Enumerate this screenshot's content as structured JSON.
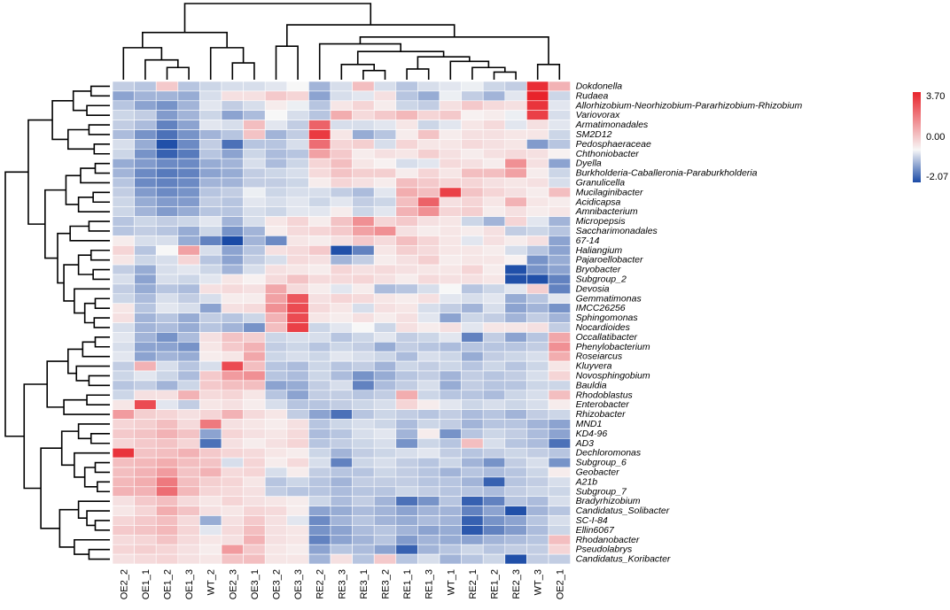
{
  "chart_data": {
    "type": "heatmap",
    "title": "",
    "columns": [
      "OE2_2",
      "OE1_1",
      "OE1_2",
      "OE1_3",
      "WT_2",
      "OE2_3",
      "OE3_1",
      "OE3_2",
      "OE3_3",
      "RE2_2",
      "RE3_3",
      "RE3_1",
      "RE3_2",
      "RE1_1",
      "RE1_3",
      "WT_1",
      "RE2_1",
      "RE1_2",
      "RE2_3",
      "WT_3",
      "OE2_1"
    ],
    "rows": [
      "Dokdonella",
      "Rudaea",
      "Allorhizobium-Neorhizobium-Pararhizobium-Rhizobium",
      "Variovorax",
      "Armatimonadales",
      "SM2D12",
      "Pedosphaeraceae",
      "Chthoniobacter",
      "Dyella",
      "Burkholderia-Caballeronia-Paraburkholderia",
      "Granulicella",
      "Mucilaginibacter",
      "Acidicapsa",
      "Amnibacterium",
      "Micropepsis",
      "Saccharimonadales",
      "67-14",
      "Haliangium",
      "Pajaroellobacter",
      "Bryobacter",
      "Subgroup_2",
      "Devosia",
      "Gemmatimonas",
      "IMCC26256",
      "Sphingomonas",
      "Nocardioides",
      "Occallatibacter",
      "Phenylobacterium",
      "Roseiarcus",
      "Kluyvera",
      "Novosphingobium",
      "Bauldia",
      "Rhodoblastus",
      "Enterobacter",
      "Rhizobacter",
      "MND1",
      "KD4-96",
      "AD3",
      "Dechloromonas",
      "Subgroup_6",
      "Geobacter",
      "A21b",
      "Subgroup_7",
      "Bradyrhizobium",
      "Candidatus_Solibacter",
      "SC-I-84",
      "Ellin6067",
      "Rhodanobacter",
      "Pseudolabrys",
      "Candidatus_Koribacter"
    ],
    "values": [
      [
        -0.5,
        -0.6,
        0.8,
        -0.6,
        -0.4,
        -0.3,
        -0.3,
        -0.2,
        0.0,
        -0.8,
        -0.3,
        1.0,
        -0.3,
        -0.6,
        -0.3,
        -0.2,
        -0.1,
        -0.4,
        -0.5,
        3.5,
        1.2
      ],
      [
        -1.0,
        -0.8,
        -0.8,
        -0.9,
        -0.3,
        0.4,
        0.4,
        0.8,
        0.6,
        -1.0,
        -0.3,
        -0.2,
        0.4,
        -0.6,
        -0.9,
        -0.1,
        -0.5,
        -0.8,
        -0.2,
        3.7,
        -0.4
      ],
      [
        -0.6,
        -1.0,
        -1.2,
        -0.8,
        -0.2,
        -0.5,
        -0.3,
        0.2,
        -0.1,
        -0.6,
        0.3,
        0.6,
        0.2,
        -0.4,
        -0.5,
        0.4,
        0.8,
        0.5,
        0.4,
        3.4,
        -0.2
      ],
      [
        -0.4,
        -0.5,
        -1.1,
        -0.8,
        -0.4,
        -1.0,
        -0.7,
        0.0,
        -0.3,
        -0.6,
        1.3,
        0.5,
        0.8,
        1.1,
        0.6,
        0.8,
        0.1,
        0.2,
        -0.1,
        3.2,
        -0.3
      ],
      [
        -0.5,
        -0.7,
        -1.4,
        -1.0,
        -0.2,
        -0.3,
        1.0,
        -0.2,
        -0.5,
        2.6,
        -0.3,
        -0.3,
        -0.2,
        0.3,
        -0.4,
        -0.2,
        0.3,
        0.5,
        -0.2,
        0.4,
        -0.2
      ],
      [
        -0.7,
        -1.2,
        -1.6,
        -1.2,
        -0.8,
        -0.6,
        0.9,
        -0.8,
        -0.5,
        3.3,
        0.3,
        -0.9,
        -0.6,
        0.2,
        0.9,
        0.2,
        0.4,
        0.4,
        0.3,
        0.3,
        -0.4
      ],
      [
        -0.3,
        -0.9,
        -2.0,
        -1.3,
        -0.5,
        -1.6,
        -0.6,
        -0.6,
        -0.3,
        2.4,
        0.6,
        0.7,
        -0.3,
        0.6,
        0.3,
        0.3,
        0.5,
        0.4,
        0.3,
        -1.1,
        -0.6
      ],
      [
        -0.4,
        -1.2,
        -1.8,
        -1.5,
        -0.6,
        -1.0,
        -0.4,
        -0.7,
        -0.6,
        1.5,
        0.8,
        0.2,
        0.4,
        0.3,
        0.7,
        0.4,
        0.2,
        0.4,
        0.5,
        0.4,
        0.1
      ],
      [
        -0.9,
        -1.1,
        -1.3,
        -1.3,
        -0.9,
        -0.8,
        -0.3,
        -0.7,
        -0.4,
        0.6,
        1.0,
        0.3,
        0.1,
        -0.3,
        -0.2,
        0.5,
        0.4,
        0.2,
        1.8,
        0.4,
        -1.0
      ],
      [
        -0.8,
        -1.3,
        -1.5,
        -1.4,
        -1.0,
        -0.9,
        -0.5,
        -0.4,
        -0.3,
        0.5,
        0.9,
        0.7,
        0.7,
        0.2,
        0.6,
        0.3,
        1.0,
        1.0,
        1.5,
        0.2,
        -0.4
      ],
      [
        -0.6,
        -1.3,
        -1.4,
        -1.3,
        -0.8,
        -0.8,
        -0.5,
        -0.5,
        -0.4,
        0.2,
        0.6,
        0.4,
        0.2,
        1.0,
        0.8,
        0.6,
        0.6,
        0.4,
        0.3,
        0.4,
        -0.3
      ],
      [
        -0.5,
        -1.1,
        -1.3,
        -1.2,
        -0.6,
        -0.5,
        -0.1,
        -0.4,
        -0.3,
        -0.3,
        -0.5,
        -0.7,
        -0.2,
        1.3,
        1.0,
        3.2,
        0.9,
        0.6,
        0.4,
        0.2,
        1.0
      ],
      [
        -0.4,
        -0.9,
        -1.1,
        -1.1,
        -0.5,
        -0.6,
        -0.2,
        -0.3,
        -0.2,
        -0.4,
        -0.2,
        -0.5,
        -0.4,
        1.0,
        2.6,
        0.4,
        0.6,
        0.3,
        1.2,
        0.3,
        0.2
      ],
      [
        -0.4,
        -0.8,
        -1.1,
        -0.9,
        -0.6,
        -0.6,
        -0.3,
        -0.4,
        -0.2,
        -0.2,
        0.2,
        -0.4,
        -0.2,
        1.2,
        1.8,
        0.6,
        0.7,
        0.2,
        0.4,
        0.2,
        0.3
      ],
      [
        -0.6,
        -0.4,
        -0.5,
        -0.4,
        -0.2,
        -0.8,
        -0.3,
        0.3,
        0.6,
        0.2,
        0.9,
        1.8,
        0.6,
        0.8,
        0.4,
        0.3,
        -0.4,
        -0.8,
        0.6,
        -0.2,
        -0.8
      ],
      [
        -0.6,
        -0.5,
        -0.6,
        -0.9,
        -0.4,
        -1.2,
        -0.8,
        0.2,
        0.5,
        0.6,
        0.8,
        1.5,
        1.8,
        0.4,
        0.2,
        0.3,
        0.2,
        0.4,
        -0.5,
        -0.4,
        -0.6
      ],
      [
        0.2,
        -0.3,
        -0.3,
        -0.9,
        -1.4,
        -2.1,
        -0.8,
        -1.3,
        0.3,
        0.2,
        0.4,
        0.8,
        0.5,
        1.0,
        0.6,
        0.3,
        -0.2,
        0.4,
        0.2,
        0.4,
        -1.0
      ],
      [
        0.6,
        -0.6,
        0.0,
        1.5,
        -0.3,
        -1.0,
        -0.6,
        0.4,
        0.5,
        0.8,
        -2.0,
        -1.4,
        0.3,
        0.7,
        0.5,
        0.3,
        0.3,
        0.2,
        -0.3,
        -0.6,
        -1.0
      ],
      [
        0.3,
        -0.4,
        -0.3,
        0.6,
        -0.6,
        -1.0,
        -0.5,
        -0.3,
        0.5,
        0.4,
        -0.8,
        -0.5,
        0.2,
        0.4,
        0.7,
        0.2,
        0.3,
        0.3,
        0.1,
        -1.2,
        -0.9
      ],
      [
        -0.5,
        -0.9,
        -0.3,
        -0.2,
        -0.4,
        -0.8,
        -0.3,
        0.4,
        0.3,
        0.2,
        0.6,
        0.4,
        0.5,
        0.4,
        0.3,
        0.3,
        0.6,
        0.2,
        -2.0,
        -1.2,
        -1.0
      ],
      [
        -0.3,
        -1.0,
        -0.3,
        -0.4,
        -0.2,
        0.3,
        0.1,
        0.5,
        0.9,
        0.5,
        0.5,
        0.6,
        0.4,
        0.2,
        0.5,
        0.4,
        0.4,
        0.3,
        -2.0,
        -2.0,
        -1.4
      ],
      [
        -0.5,
        -0.9,
        -0.6,
        -0.7,
        0.4,
        0.5,
        0.4,
        1.4,
        0.5,
        0.2,
        -0.2,
        0.2,
        -0.7,
        -0.6,
        -0.3,
        0.0,
        -0.6,
        -0.4,
        -0.2,
        0.7,
        -1.4
      ],
      [
        -0.4,
        -0.7,
        -0.3,
        -0.5,
        -0.3,
        0.2,
        0.2,
        1.5,
        2.8,
        0.4,
        0.6,
        0.5,
        0.3,
        0.2,
        0.4,
        -0.2,
        -0.3,
        -0.2,
        -0.9,
        -0.6,
        -0.2
      ],
      [
        0.3,
        -0.6,
        -0.2,
        -0.3,
        -1.0,
        0.4,
        0.5,
        1.8,
        3.0,
        0.5,
        0.3,
        -0.3,
        0.4,
        0.3,
        -0.3,
        -0.5,
        -0.8,
        -0.3,
        -1.0,
        -0.8,
        -1.2
      ],
      [
        0.4,
        -0.8,
        -0.6,
        -0.9,
        -0.5,
        -0.6,
        -0.4,
        1.2,
        3.0,
        0.3,
        0.2,
        0.4,
        0.2,
        0.4,
        -0.2,
        -1.0,
        -0.4,
        -0.5,
        -0.8,
        -0.5,
        -0.8
      ],
      [
        -0.3,
        -0.8,
        -0.7,
        -0.9,
        -0.6,
        -0.8,
        -1.2,
        1.0,
        3.2,
        -0.4,
        -0.2,
        0.0,
        -0.4,
        0.4,
        0.2,
        0.4,
        -0.2,
        0.3,
        0.3,
        0.4,
        -0.5
      ],
      [
        -0.2,
        -0.8,
        -1.2,
        -0.7,
        0.4,
        0.9,
        0.7,
        -0.4,
        -0.3,
        -0.3,
        -0.6,
        -0.4,
        -0.2,
        -0.5,
        -0.4,
        -0.2,
        -1.4,
        -0.5,
        -1.0,
        -0.6,
        1.4
      ],
      [
        -0.3,
        -1.0,
        -1.0,
        -1.2,
        0.3,
        0.8,
        1.2,
        -0.5,
        -0.4,
        -0.6,
        -0.4,
        -0.5,
        -0.9,
        -0.5,
        -0.6,
        -0.7,
        -0.6,
        -0.6,
        -0.6,
        -0.5,
        1.8
      ],
      [
        -0.2,
        -1.0,
        -0.8,
        -0.9,
        0.2,
        0.3,
        1.4,
        -0.4,
        -0.3,
        -0.4,
        -0.2,
        -0.3,
        -0.4,
        -0.7,
        -0.3,
        -0.4,
        -0.9,
        -0.5,
        -0.4,
        -0.3,
        1.3
      ],
      [
        -0.5,
        1.2,
        -0.3,
        -0.6,
        -0.3,
        3.0,
        1.0,
        -0.6,
        -0.7,
        -0.4,
        -0.6,
        -0.5,
        -0.8,
        -0.4,
        -0.5,
        -0.4,
        -0.6,
        -0.4,
        -0.6,
        -0.4,
        0.3
      ],
      [
        -0.4,
        -0.2,
        -0.4,
        -0.7,
        0.8,
        1.6,
        1.8,
        -0.6,
        -0.7,
        -0.4,
        -0.7,
        -1.2,
        -0.9,
        -0.6,
        -0.5,
        -0.8,
        -0.5,
        -0.6,
        -0.5,
        -0.3,
        0.6
      ],
      [
        -0.6,
        -0.5,
        -0.8,
        -0.4,
        0.8,
        1.0,
        1.0,
        -1.0,
        -0.9,
        -0.5,
        -0.3,
        -1.4,
        -0.7,
        -0.5,
        -0.3,
        -0.9,
        -0.5,
        -0.6,
        -0.6,
        -0.4,
        -0.4
      ],
      [
        -0.4,
        0.4,
        0.4,
        1.2,
        0.5,
        0.6,
        0.3,
        -0.6,
        -1.0,
        -0.5,
        -0.5,
        -0.6,
        -0.5,
        1.3,
        -0.4,
        -0.6,
        -0.6,
        -0.7,
        -0.4,
        -0.3,
        1.0
      ],
      [
        0.3,
        3.0,
        -0.2,
        -0.5,
        0.3,
        0.4,
        0.2,
        -0.3,
        -0.6,
        -0.6,
        -0.5,
        -0.4,
        -0.3,
        0.6,
        0.2,
        -0.2,
        -0.4,
        -0.3,
        -0.4,
        -0.3,
        0.2
      ],
      [
        1.6,
        0.7,
        0.6,
        0.4,
        0.6,
        1.2,
        0.5,
        0.3,
        -0.5,
        -1.0,
        -1.6,
        -0.6,
        -0.4,
        -0.5,
        -0.6,
        -0.5,
        -0.7,
        -0.6,
        -0.8,
        -0.5,
        -0.4
      ],
      [
        0.6,
        0.7,
        1.0,
        0.5,
        2.2,
        0.4,
        0.3,
        0.2,
        0.4,
        -0.6,
        -0.4,
        -0.3,
        -0.4,
        -0.7,
        -0.4,
        -0.5,
        -0.8,
        -0.6,
        -0.6,
        -0.8,
        -1.0
      ],
      [
        0.8,
        0.9,
        1.2,
        0.9,
        -1.0,
        0.6,
        0.4,
        0.3,
        0.5,
        -0.7,
        -0.6,
        -0.3,
        -0.2,
        -0.8,
        0.2,
        -1.2,
        -0.6,
        -0.4,
        -0.5,
        -0.7,
        -1.0
      ],
      [
        0.6,
        0.8,
        0.9,
        0.6,
        -1.6,
        0.4,
        0.2,
        0.4,
        0.6,
        -0.6,
        -0.5,
        -0.4,
        -0.3,
        -1.2,
        -0.4,
        -0.6,
        1.0,
        -0.3,
        -0.6,
        -0.7,
        -1.6
      ],
      [
        3.4,
        0.9,
        1.0,
        1.2,
        0.8,
        0.6,
        0.5,
        0.3,
        0.2,
        -0.4,
        -0.8,
        -0.5,
        -0.4,
        -0.3,
        -0.2,
        -0.5,
        -0.6,
        -0.5,
        -0.4,
        -0.5,
        -0.6
      ],
      [
        1.0,
        1.1,
        1.3,
        1.0,
        0.9,
        -0.3,
        0.6,
        0.2,
        0.5,
        -0.3,
        -1.4,
        -0.4,
        -0.3,
        -0.5,
        -0.6,
        -0.4,
        -0.8,
        -1.2,
        -0.5,
        -0.3,
        -1.2
      ],
      [
        1.0,
        1.2,
        1.6,
        0.9,
        1.2,
        0.5,
        0.6,
        -0.3,
        0.2,
        -0.5,
        -0.6,
        -0.6,
        -0.4,
        -0.5,
        -0.6,
        -0.8,
        -0.6,
        -0.7,
        -0.6,
        -0.4,
        0.2
      ],
      [
        1.1,
        1.3,
        2.2,
        1.0,
        0.7,
        0.6,
        0.3,
        -0.6,
        -0.4,
        -0.6,
        -0.8,
        -0.5,
        -0.5,
        -0.5,
        -0.6,
        -0.6,
        -0.8,
        -1.8,
        -0.6,
        -0.5,
        -0.3
      ],
      [
        1.2,
        1.2,
        2.4,
        1.1,
        0.6,
        0.5,
        0.4,
        -0.5,
        -0.6,
        -0.6,
        -0.7,
        -0.6,
        -0.6,
        -0.4,
        -0.5,
        -0.6,
        -0.6,
        -0.7,
        -0.5,
        -0.4,
        -0.4
      ],
      [
        0.4,
        0.8,
        1.0,
        0.5,
        0.3,
        0.6,
        0.4,
        0.3,
        0.2,
        -0.4,
        -0.7,
        -0.5,
        -0.8,
        -1.6,
        -1.2,
        -0.6,
        -1.8,
        -1.4,
        -0.6,
        -0.7,
        -0.3
      ],
      [
        0.3,
        0.6,
        1.3,
        0.9,
        0.4,
        0.3,
        0.6,
        0.5,
        0.2,
        -1.0,
        -0.9,
        -0.7,
        -0.8,
        -1.0,
        -0.8,
        -0.8,
        -1.4,
        -1.0,
        -2.0,
        -0.8,
        -0.6
      ],
      [
        0.6,
        0.8,
        1.0,
        0.5,
        -0.9,
        0.4,
        0.8,
        0.4,
        -0.2,
        -1.3,
        -0.8,
        -0.6,
        -0.8,
        -0.9,
        -0.7,
        -0.8,
        -1.8,
        -1.2,
        -1.0,
        -0.6,
        -0.3
      ],
      [
        0.8,
        0.9,
        1.1,
        0.6,
        -0.2,
        0.5,
        1.0,
        0.4,
        0.3,
        -1.2,
        -1.0,
        -0.7,
        -0.6,
        -0.8,
        -1.0,
        -0.9,
        -1.9,
        -1.4,
        -1.1,
        -0.7,
        -0.4
      ],
      [
        0.5,
        0.6,
        0.9,
        0.5,
        0.3,
        0.4,
        1.2,
        0.4,
        0.3,
        -1.4,
        -1.0,
        -0.8,
        -0.6,
        -1.1,
        -0.8,
        -0.9,
        -1.0,
        -0.8,
        -0.7,
        -0.6,
        1.0
      ],
      [
        0.6,
        0.7,
        0.6,
        0.4,
        0.2,
        1.6,
        0.8,
        0.3,
        0.2,
        -1.0,
        -0.6,
        -0.7,
        -1.0,
        -1.8,
        -0.8,
        -0.6,
        -0.4,
        -0.6,
        -0.5,
        -0.5,
        0.6
      ],
      [
        0.4,
        0.5,
        0.6,
        0.4,
        0.3,
        0.9,
        1.0,
        0.3,
        0.3,
        -0.8,
        0.4,
        -0.6,
        0.8,
        -0.6,
        -0.3,
        -0.8,
        -0.6,
        -0.4,
        -2.0,
        -0.5,
        -0.5
      ]
    ],
    "scale": {
      "min": -2.07,
      "mid": 0.0,
      "max": 3.7,
      "min_color": "#1a4aa6",
      "mid_color": "#f7f7f7",
      "max_color": "#e8232b"
    },
    "legend": {
      "labels": [
        "3.70",
        "0.00",
        "-2.07"
      ],
      "placement": "right"
    },
    "row_dendrogram": "left",
    "column_dendrogram": "top"
  }
}
